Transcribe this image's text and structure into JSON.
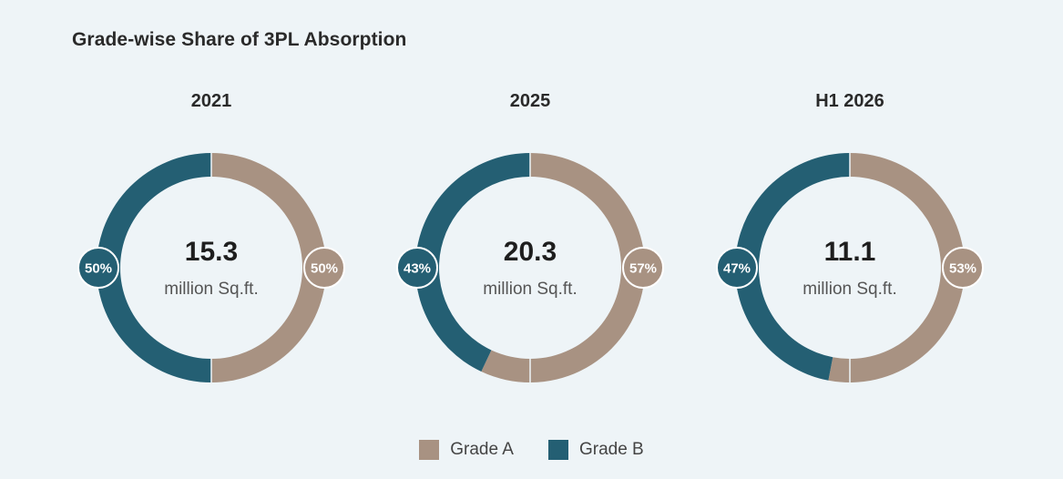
{
  "title": "Grade-wise Share of 3PL Absorption",
  "colors": {
    "grade_a": "#a89282",
    "grade_b": "#245f73",
    "background": "#eef4f7"
  },
  "chart_data": {
    "type": "pie",
    "title": "Grade-wise Share of 3PL Absorption",
    "legend": [
      "Grade A",
      "Grade B"
    ],
    "legend_placement": "bottom",
    "charts": [
      {
        "label": "2021",
        "total": "15.3",
        "unit": "million Sq.ft.",
        "series": [
          {
            "name": "Grade A",
            "value": 50,
            "label": "50%"
          },
          {
            "name": "Grade B",
            "value": 50,
            "label": "50%"
          }
        ]
      },
      {
        "label": "2025",
        "total": "20.3",
        "unit": "million Sq.ft.",
        "series": [
          {
            "name": "Grade A",
            "value": 57,
            "label": "57%"
          },
          {
            "name": "Grade B",
            "value": 43,
            "label": "43%"
          }
        ]
      },
      {
        "label": "H1 2026",
        "total": "11.1",
        "unit": "million Sq.ft.",
        "series": [
          {
            "name": "Grade A",
            "value": 53,
            "label": "53%"
          },
          {
            "name": "Grade B",
            "value": 47,
            "label": "47%"
          }
        ]
      }
    ]
  }
}
